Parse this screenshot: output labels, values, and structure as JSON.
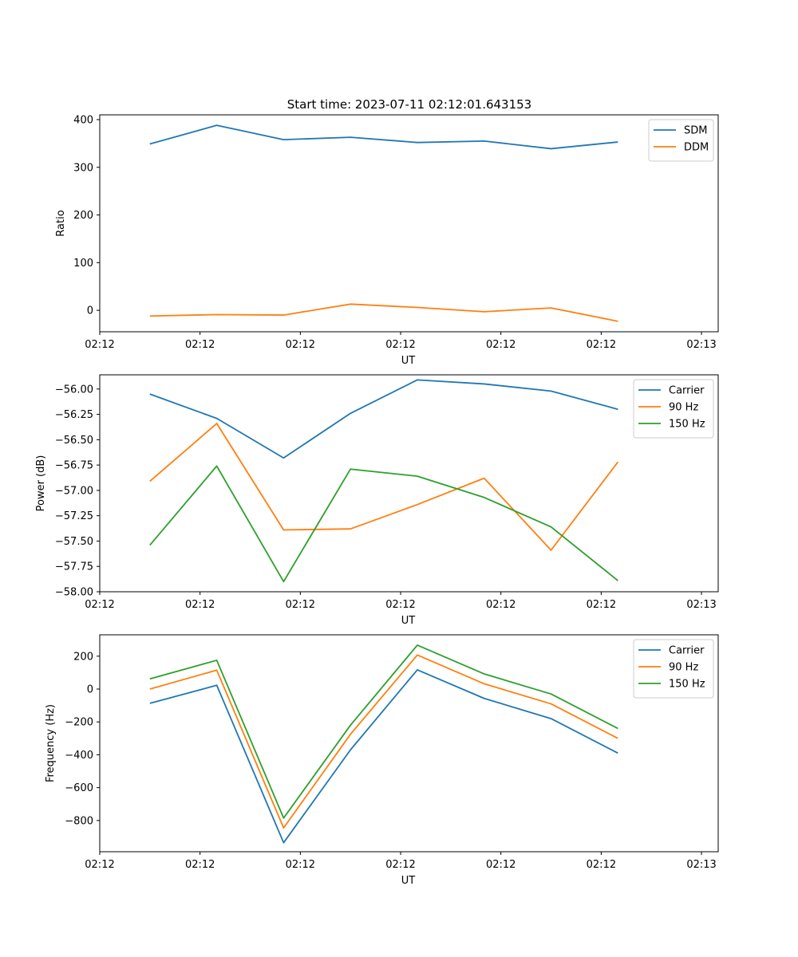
{
  "figure": {
    "title": "Start time: 2023-07-11 02:12:01.643153"
  },
  "chart_data": [
    {
      "type": "line",
      "title": "Start time: 2023-07-11 02:12:01.643153",
      "xlabel": "UT",
      "ylabel": "Ratio",
      "xlim": [
        -0.75,
        8.5
      ],
      "ylim": [
        -45,
        410
      ],
      "x": [
        0,
        1,
        2,
        3,
        4,
        5,
        6,
        7
      ],
      "x_tick_positions": [
        -0.75,
        0.75,
        2.25,
        3.75,
        5.25,
        6.75,
        8.25
      ],
      "x_tick_labels": [
        "02:12",
        "02:12",
        "02:12",
        "02:12",
        "02:12",
        "02:12",
        "02:13"
      ],
      "y_ticks": [
        0,
        100,
        200,
        300,
        400
      ],
      "y_tick_labels": [
        "0",
        "100",
        "200",
        "300",
        "400"
      ],
      "legend": "top-right",
      "series": [
        {
          "name": "SDM",
          "color": "#1f77b4",
          "values": [
            349,
            388,
            358,
            363,
            352,
            355,
            339,
            353
          ]
        },
        {
          "name": "DDM",
          "color": "#ff7f0e",
          "values": [
            -12,
            -9,
            -10,
            13,
            6,
            -3,
            5,
            -23
          ]
        }
      ]
    },
    {
      "type": "line",
      "title": "",
      "xlabel": "UT",
      "ylabel": "Power (dB)",
      "xlim": [
        -0.75,
        8.5
      ],
      "ylim": [
        -58.0,
        -55.86
      ],
      "x": [
        0,
        1,
        2,
        3,
        4,
        5,
        6,
        7
      ],
      "x_tick_positions": [
        -0.75,
        0.75,
        2.25,
        3.75,
        5.25,
        6.75,
        8.25
      ],
      "x_tick_labels": [
        "02:12",
        "02:12",
        "02:12",
        "02:12",
        "02:12",
        "02:12",
        "02:13"
      ],
      "y_ticks": [
        -58.0,
        -57.75,
        -57.5,
        -57.25,
        -57.0,
        -56.75,
        -56.5,
        -56.25,
        -56.0
      ],
      "y_tick_labels": [
        "−58.00",
        "−57.75",
        "−57.50",
        "−57.25",
        "−57.00",
        "−56.75",
        "−56.50",
        "−56.25",
        "−56.00"
      ],
      "legend": "top-right",
      "series": [
        {
          "name": "Carrier",
          "color": "#1f77b4",
          "values": [
            -56.05,
            -56.29,
            -56.68,
            -56.24,
            -55.91,
            -55.95,
            -56.02,
            -56.2
          ]
        },
        {
          "name": "90 Hz",
          "color": "#ff7f0e",
          "values": [
            -56.91,
            -56.34,
            -57.39,
            -57.38,
            -57.14,
            -56.88,
            -57.59,
            -56.72
          ]
        },
        {
          "name": "150 Hz",
          "color": "#2ca02c",
          "values": [
            -57.54,
            -56.76,
            -57.9,
            -56.79,
            -56.86,
            -57.07,
            -57.36,
            -57.89
          ]
        }
      ]
    },
    {
      "type": "line",
      "title": "",
      "xlabel": "UT",
      "ylabel": "Frequency (Hz)",
      "xlim": [
        -0.75,
        8.5
      ],
      "ylim": [
        -990,
        330
      ],
      "x": [
        0,
        1,
        2,
        3,
        4,
        5,
        6,
        7
      ],
      "x_tick_positions": [
        -0.75,
        0.75,
        2.25,
        3.75,
        5.25,
        6.75,
        8.25
      ],
      "x_tick_labels": [
        "02:12",
        "02:12",
        "02:12",
        "02:12",
        "02:12",
        "02:12",
        "02:13"
      ],
      "y_ticks": [
        -800,
        -600,
        -400,
        -200,
        0,
        200
      ],
      "y_tick_labels": [
        "−800",
        "−600",
        "−400",
        "−200",
        "0",
        "200"
      ],
      "legend": "top-right",
      "series": [
        {
          "name": "Carrier",
          "color": "#1f77b4",
          "values": [
            -87,
            23,
            -935,
            -370,
            117,
            -57,
            -180,
            -390
          ]
        },
        {
          "name": "90 Hz",
          "color": "#ff7f0e",
          "values": [
            0,
            115,
            -845,
            -275,
            207,
            32,
            -90,
            -300
          ]
        },
        {
          "name": "150 Hz",
          "color": "#2ca02c",
          "values": [
            62,
            175,
            -785,
            -220,
            267,
            92,
            -30,
            -240
          ]
        }
      ]
    }
  ]
}
